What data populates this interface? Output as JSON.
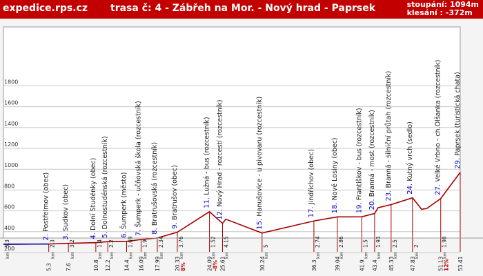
{
  "header": {
    "site": "expedice.rps.cz",
    "route": "trasa č: 4  -  Zábřeh na Mor. - Nový hrad - Paprsek",
    "ascent": "stoupání: 1094m",
    "descent": "klesání : -372m"
  },
  "colors": {
    "header": "#c20000",
    "profile": "#a00000",
    "flat": "#0000a0",
    "marker": "#0000c0",
    "grade": "#c00000",
    "grid": "#c8c8c8"
  },
  "chart_data": {
    "type": "line",
    "title": "",
    "xlabel": "",
    "ylabel": "",
    "ylim": [
      200,
      2000
    ],
    "xlim": [
      0,
      53.41
    ],
    "yticks": [
      200,
      400,
      600,
      800,
      1000,
      1200,
      1400,
      1600,
      1800
    ],
    "series": [
      {
        "x": [
          0,
          5.3,
          7.6,
          10.8,
          12.2,
          14.4,
          16.09,
          17.99,
          20.33,
          24.09,
          25.61,
          26.0,
          30.24,
          36.3,
          39.04,
          41.9,
          43.4,
          43.8,
          45.33,
          47.83,
          48.9,
          49.5,
          51.13,
          53.41
        ],
        "y": [
          280,
          282,
          288,
          295,
          305,
          307,
          325,
          340,
          395,
          592,
          480,
          520,
          387,
          503,
          542,
          543,
          575,
          630,
          660,
          725,
          615,
          623,
          718,
          970
        ]
      }
    ],
    "waypoints": [
      {
        "num": "",
        "name": "",
        "km": 0,
        "dist": "",
        "seg": "5.3"
      },
      {
        "num": "2.",
        "name": "Postřelmov (obec)",
        "km": 5.3,
        "dist": "5.3",
        "seg": "2.3"
      },
      {
        "num": "3.",
        "name": "Sudkov (obec)",
        "km": 7.6,
        "dist": "7.6",
        "seg": "3.2"
      },
      {
        "num": "4.",
        "name": "Dolní Studénky (obec)",
        "km": 10.8,
        "dist": "10.8",
        "seg": "1.4"
      },
      {
        "num": "5.",
        "name": "Dolnostudénská (rozcestník)",
        "km": 12.2,
        "dist": "12.2",
        "seg": "2.2"
      },
      {
        "num": "6.",
        "name": "Šumperk (město)",
        "km": 14.4,
        "dist": "14.4",
        "seg": "1.69"
      },
      {
        "num": "7.",
        "name": "Šumperk - učňovská škola (rozcestník)",
        "km": 16.09,
        "dist": "16.09",
        "seg": "1.9"
      },
      {
        "num": "8.",
        "name": "Bratrušovská (rozcestník)",
        "km": 17.99,
        "dist": "17.99",
        "seg": "2.34"
      },
      {
        "num": "9.",
        "name": "Bratrušov (obec)",
        "km": 20.33,
        "dist": "20.33",
        "seg": "3.76",
        "grade": "8%"
      },
      {
        "num": "11.",
        "name": "Lužná - bus (rozcestník)",
        "km": 24.09,
        "dist": "24.09",
        "seg": "1.52",
        "grade": "-8%"
      },
      {
        "num": "12.",
        "name": "Nový Hrad - rozcestí  (rozcestník)",
        "km": 25.61,
        "dist": "25.61",
        "seg": "4.15"
      },
      {
        "num": "15.",
        "name": "Hanušovice - u pivovaru (rozcestník)",
        "km": 30.24,
        "dist": "30.24",
        "seg": "5"
      },
      {
        "num": "17.",
        "name": "Jindřichov (obec)",
        "km": 36.3,
        "dist": "36.3",
        "seg": "2.74"
      },
      {
        "num": "18.",
        "name": "Nové Losiny (obec)",
        "km": 39.04,
        "dist": "39.04",
        "seg": "2.86"
      },
      {
        "num": "19.",
        "name": "Františkov - bus (rozcestník)",
        "km": 41.9,
        "dist": "41.9",
        "seg": "1.5"
      },
      {
        "num": "20.",
        "name": "Branná - most (rozcestník)",
        "km": 43.4,
        "dist": "43.4",
        "seg": "1.93"
      },
      {
        "num": "23.",
        "name": "Branná - silniční průtah (rozcestník)",
        "km": 45.33,
        "dist": "45.33",
        "seg": "2.5"
      },
      {
        "num": "24.",
        "name": "Kutný vrch (sedlo)",
        "km": 47.83,
        "dist": "47.83",
        "seg": "2"
      },
      {
        "num": "27.",
        "name": "Velké Vrbno - ch.Olšanka (rozcestník)",
        "km": 51.13,
        "dist": "51.13",
        "seg": "1.98",
        "grade": "12%"
      },
      {
        "num": "29.",
        "name": "Paprsek (turistická chata)",
        "km": 53.41,
        "dist": "53.41",
        "seg": ""
      }
    ],
    "km_label": "km"
  }
}
